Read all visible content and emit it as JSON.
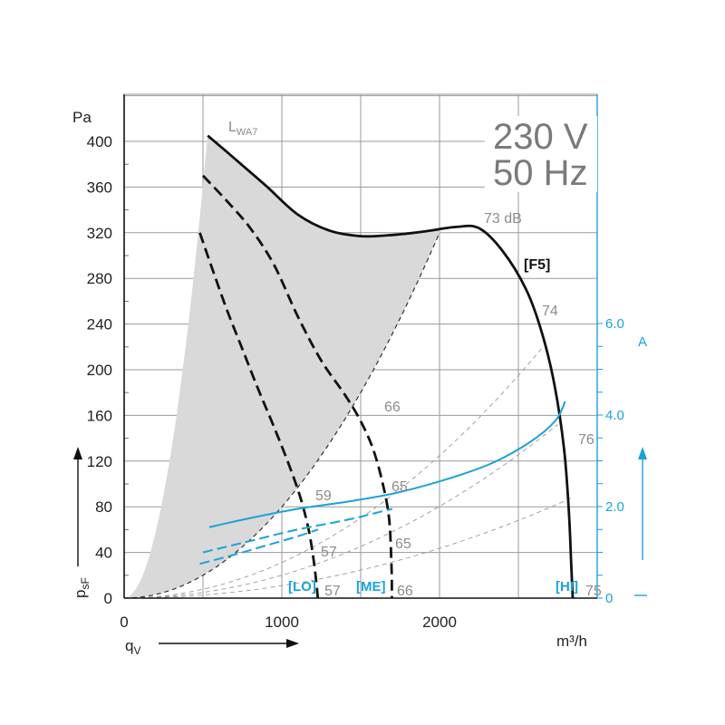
{
  "chart_data": {
    "type": "line",
    "voltage": "230 V",
    "frequency": "50 Hz",
    "x_unit": "m³/h",
    "x_symbol": "qV",
    "y_unit": "Pa",
    "y_symbol": "psF",
    "y2_unit": "A",
    "xlim": [
      0,
      3000
    ],
    "ylim": [
      0,
      400
    ],
    "y2lim": [
      0,
      6.0
    ],
    "x_ticks": [
      "0",
      "1000",
      "2000"
    ],
    "y_ticks": [
      "0",
      "40",
      "80",
      "120",
      "160",
      "200",
      "240",
      "280",
      "320",
      "360",
      "400"
    ],
    "y2_ticks": [
      "0",
      "2.0",
      "4.0",
      "6.0"
    ],
    "sound_power_label": "LWA7",
    "series": [
      {
        "name": "[F5]",
        "kind": "pressure",
        "style": "solid",
        "color": "#111111",
        "points": [
          [
            530,
            405
          ],
          [
            700,
            385
          ],
          [
            900,
            361
          ],
          [
            1100,
            336
          ],
          [
            1300,
            322
          ],
          [
            1500,
            317
          ],
          [
            1700,
            318
          ],
          [
            1900,
            321
          ],
          [
            2100,
            325
          ],
          [
            2250,
            324
          ],
          [
            2400,
            304
          ],
          [
            2550,
            270
          ],
          [
            2650,
            232
          ],
          [
            2730,
            186
          ],
          [
            2790,
            130
          ],
          [
            2820,
            76
          ],
          [
            2835,
            30
          ],
          [
            2845,
            0
          ]
        ]
      },
      {
        "name": "[ME]",
        "kind": "pressure",
        "style": "dashed",
        "color": "#111111",
        "points": [
          [
            500,
            370
          ],
          [
            650,
            348
          ],
          [
            800,
            324
          ],
          [
            950,
            292
          ],
          [
            1100,
            247
          ],
          [
            1250,
            208
          ],
          [
            1400,
            178
          ],
          [
            1500,
            155
          ],
          [
            1580,
            130
          ],
          [
            1640,
            100
          ],
          [
            1680,
            70
          ],
          [
            1695,
            30
          ],
          [
            1698,
            0
          ]
        ]
      },
      {
        "name": "[LO]",
        "kind": "pressure",
        "style": "dashed",
        "color": "#111111",
        "points": [
          [
            480,
            320
          ],
          [
            560,
            288
          ],
          [
            650,
            253
          ],
          [
            750,
            218
          ],
          [
            850,
            183
          ],
          [
            950,
            150
          ],
          [
            1050,
            115
          ],
          [
            1120,
            87
          ],
          [
            1170,
            60
          ],
          [
            1200,
            35
          ],
          [
            1218,
            15
          ],
          [
            1228,
            0
          ]
        ]
      },
      {
        "name": "[HI] current",
        "kind": "current",
        "style": "solid",
        "color": "#1aa3d8",
        "points": [
          [
            540,
            1.55
          ],
          [
            800,
            1.75
          ],
          [
            1100,
            1.95
          ],
          [
            1400,
            2.1
          ],
          [
            1700,
            2.28
          ],
          [
            2000,
            2.55
          ],
          [
            2300,
            2.9
          ],
          [
            2500,
            3.25
          ],
          [
            2650,
            3.6
          ],
          [
            2740,
            3.9
          ],
          [
            2780,
            4.15
          ],
          [
            2795,
            4.3
          ]
        ]
      },
      {
        "name": "[ME] current",
        "kind": "current",
        "style": "dashed",
        "color": "#1aa3d8",
        "points": [
          [
            500,
            1.0
          ],
          [
            800,
            1.25
          ],
          [
            1100,
            1.5
          ],
          [
            1400,
            1.7
          ],
          [
            1700,
            1.95
          ]
        ]
      },
      {
        "name": "[LO] current",
        "kind": "current",
        "style": "dashed",
        "color": "#1aa3d8",
        "points": [
          [
            480,
            0.75
          ],
          [
            700,
            0.95
          ],
          [
            900,
            1.15
          ],
          [
            1100,
            1.35
          ],
          [
            1230,
            1.5
          ]
        ]
      }
    ],
    "system_curves": [
      {
        "k": 8e-05,
        "xmax": 2000,
        "color": "#333333"
      },
      {
        "k": 3.12e-05,
        "xmax": 2650,
        "color": "#999999"
      },
      {
        "k": 2.01e-05,
        "xmax": 2750,
        "color": "#999999"
      },
      {
        "k": 1.09e-05,
        "xmax": 2850,
        "color": "#999999"
      }
    ],
    "annotations": {
      "db_73": "73 dB",
      "db_74": "74",
      "db_76": "76",
      "db_75": "75",
      "db_66_top": "66",
      "db_65_mid": "65",
      "db_65_low": "65",
      "db_66_bot": "66",
      "db_59": "59",
      "db_57_mid": "57",
      "db_57_bot": "57",
      "tag_f5": "[F5]",
      "tag_hi": "[HI]",
      "tag_me": "[ME]",
      "tag_lo": "[LO]"
    },
    "grid": true
  }
}
